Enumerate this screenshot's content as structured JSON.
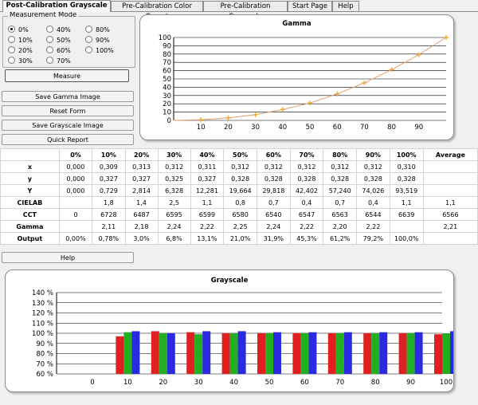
{
  "tabs": [
    {
      "label": "Post-Calibration Grayscale",
      "active": true
    },
    {
      "label": "Pre-Calibration Color Gamut",
      "active": false
    },
    {
      "label": "Pre-Calibration Grayscale",
      "active": false
    },
    {
      "label": "Start Page",
      "active": false
    },
    {
      "label": "Help",
      "active": false
    }
  ],
  "measurement_mode": {
    "title": "Measurement Mode",
    "options": [
      "0%",
      "10%",
      "20%",
      "30%",
      "40%",
      "50%",
      "60%",
      "70%",
      "80%",
      "90%",
      "100%"
    ],
    "selected": "0%",
    "measure_label": "Measure"
  },
  "buttons": {
    "save_gamma": "Save Gamma Image",
    "reset_form": "Reset Form",
    "save_grayscale": "Save Grayscale Image",
    "quick_report": "Quick Report",
    "help": "Help"
  },
  "table": {
    "headers": [
      "",
      "0%",
      "10%",
      "20%",
      "30%",
      "40%",
      "50%",
      "60%",
      "70%",
      "80%",
      "90%",
      "100%",
      "Average"
    ],
    "rows": [
      [
        "x",
        "0,000",
        "0,309",
        "0,313",
        "0,312",
        "0,311",
        "0,312",
        "0,312",
        "0,312",
        "0,312",
        "0,312",
        "0,310",
        ""
      ],
      [
        "y",
        "0,000",
        "0,327",
        "0,327",
        "0,325",
        "0,327",
        "0,328",
        "0,328",
        "0,328",
        "0,328",
        "0,328",
        "0,328",
        ""
      ],
      [
        "Y",
        "0,000",
        "0,729",
        "2,814",
        "6,328",
        "12,281",
        "19,664",
        "29,818",
        "42,402",
        "57,240",
        "74,026",
        "93,519",
        ""
      ],
      [
        "CIELAB",
        "",
        "1,8",
        "1,4",
        "2,5",
        "1,1",
        "0,8",
        "0,7",
        "0,4",
        "0,7",
        "0,4",
        "1,1",
        "1,1"
      ],
      [
        "CCT",
        "0",
        "6728",
        "6487",
        "6595",
        "6599",
        "6580",
        "6540",
        "6547",
        "6563",
        "6544",
        "6639",
        "6566"
      ],
      [
        "Gamma",
        "",
        "2,11",
        "2,18",
        "2,24",
        "2,22",
        "2,25",
        "2,24",
        "2,22",
        "2,20",
        "2,22",
        "",
        "2,21"
      ],
      [
        "Output",
        "0,00%",
        "0,78%",
        "3,0%",
        "6,8%",
        "13,1%",
        "21,0%",
        "31,9%",
        "45,3%",
        "61,2%",
        "79,2%",
        "100,0%",
        ""
      ]
    ]
  },
  "chart_data": [
    {
      "type": "line",
      "title": "Gamma",
      "x": [
        0,
        10,
        20,
        30,
        40,
        50,
        60,
        70,
        80,
        90,
        100
      ],
      "series": [
        {
          "values": [
            0,
            0.8,
            3.0,
            6.8,
            13.1,
            21.0,
            31.9,
            45.3,
            61.2,
            79.2,
            100.0
          ],
          "color": "#f0a830"
        }
      ],
      "xticks": [
        10,
        20,
        30,
        40,
        50,
        60,
        70,
        80,
        90
      ],
      "yticks": [
        0,
        10,
        20,
        30,
        40,
        50,
        60,
        70,
        80,
        90,
        100
      ],
      "xlim": [
        0,
        100
      ],
      "ylim": [
        0,
        100
      ],
      "grid": "horizontal"
    },
    {
      "type": "bar",
      "title": "Grayscale",
      "categories": [
        "0",
        "10",
        "20",
        "30",
        "40",
        "50",
        "60",
        "70",
        "80",
        "90",
        "100"
      ],
      "series": [
        {
          "color": "#e02020",
          "values": [
            null,
            97,
            102,
            101,
            100,
            100,
            100,
            100,
            100,
            100,
            99
          ]
        },
        {
          "color": "#22b022",
          "values": [
            null,
            101,
            100,
            99,
            100,
            100,
            100,
            100,
            100,
            100,
            100
          ]
        },
        {
          "color": "#2a2ae0",
          "values": [
            null,
            102,
            100,
            102,
            102,
            101,
            101,
            101,
            101,
            101,
            102
          ]
        }
      ],
      "yticks": [
        "60 %",
        "70 %",
        "80 %",
        "90 %",
        "100 %",
        "110 %",
        "120 %",
        "130 %",
        "140 %"
      ],
      "ylim": [
        60,
        140
      ],
      "grid": "horizontal"
    }
  ]
}
